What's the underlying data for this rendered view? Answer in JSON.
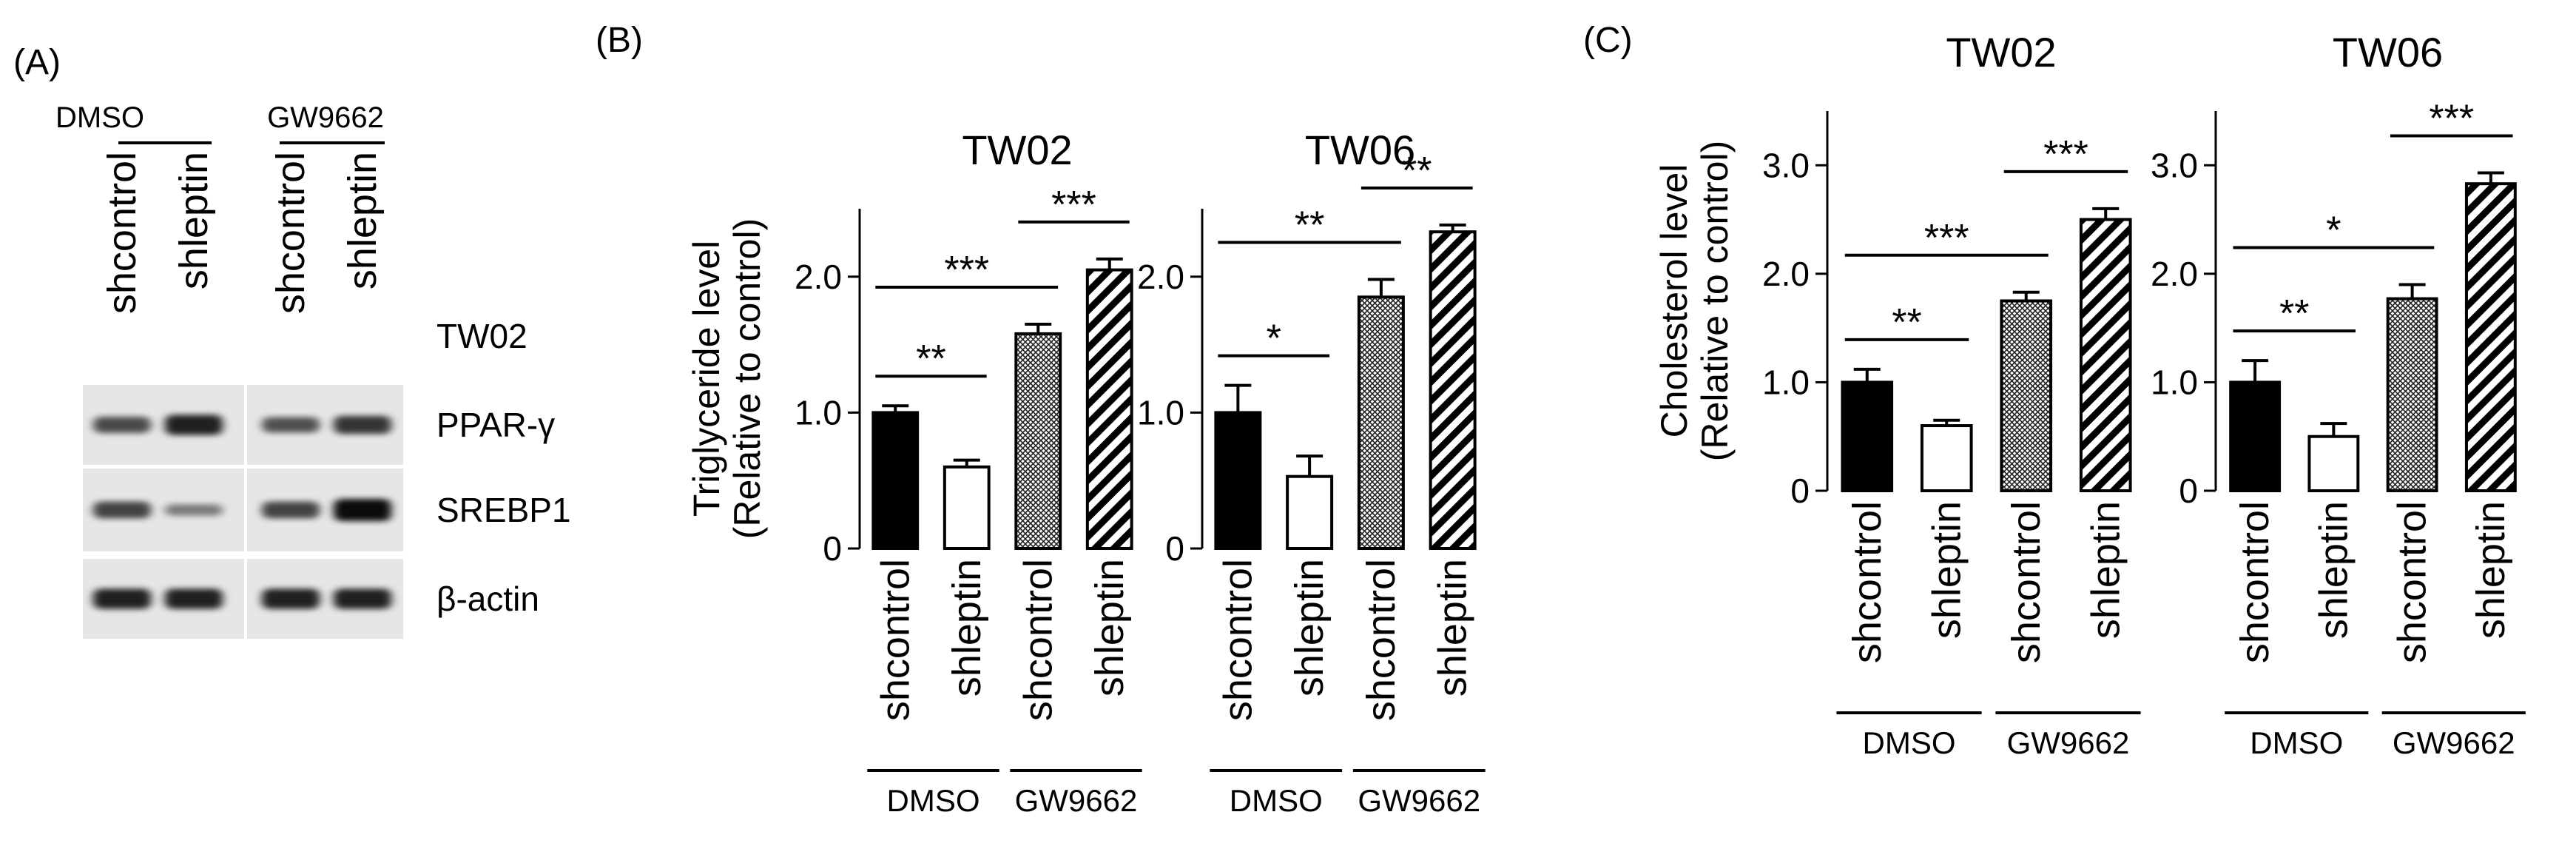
{
  "panel_labels": {
    "a": "(A)",
    "b": "(B)",
    "c": "(C)"
  },
  "blot": {
    "treatments": [
      "DMSO",
      "GW9662"
    ],
    "lanes": [
      "shcontrol",
      "shleptin",
      "shcontrol",
      "shleptin"
    ],
    "cell_line": "TW02",
    "proteins": [
      {
        "name": "PPAR-γ",
        "intensities": [
          0.55,
          0.85,
          0.5,
          0.7
        ]
      },
      {
        "name": "SREBP1",
        "intensities": [
          0.6,
          0.2,
          0.6,
          1.0
        ]
      },
      {
        "name": "β-actin",
        "intensities": [
          0.85,
          0.85,
          0.85,
          0.85
        ]
      }
    ]
  },
  "chart_data": [
    {
      "type": "bar",
      "panel": "B",
      "title": "TW02",
      "ylabel": "Triglyceride level",
      "ylabel2": "(Relative to control)",
      "categories": [
        "shcontrol",
        "shleptin",
        "shcontrol",
        "shleptin"
      ],
      "groups": [
        "DMSO",
        "GW9662"
      ],
      "values": [
        1.0,
        0.6,
        1.58,
        2.05
      ],
      "errors": [
        0.05,
        0.05,
        0.07,
        0.08
      ],
      "ylim": [
        0,
        2.5
      ],
      "yticks": [
        "0",
        "1.0",
        "2.0"
      ],
      "significance": [
        {
          "from": 0,
          "to": 1,
          "label": "**"
        },
        {
          "from": 0,
          "to": 2,
          "label": "***"
        },
        {
          "from": 2,
          "to": 3,
          "label": "***"
        }
      ]
    },
    {
      "type": "bar",
      "panel": "B",
      "title": "TW06",
      "ylabel": "",
      "categories": [
        "shcontrol",
        "shleptin",
        "shcontrol",
        "shleptin"
      ],
      "groups": [
        "DMSO",
        "GW9662"
      ],
      "values": [
        1.0,
        0.53,
        1.85,
        2.33
      ],
      "errors": [
        0.2,
        0.15,
        0.13,
        0.05
      ],
      "ylim": [
        0,
        2.5
      ],
      "yticks": [
        "0",
        "1.0",
        "2.0"
      ],
      "significance": [
        {
          "from": 0,
          "to": 1,
          "label": "*"
        },
        {
          "from": 0,
          "to": 2,
          "label": "**"
        },
        {
          "from": 2,
          "to": 3,
          "label": "**"
        }
      ]
    },
    {
      "type": "bar",
      "panel": "C",
      "title": "TW02",
      "ylabel": "Cholesterol level",
      "ylabel2": "(Relative to control)",
      "categories": [
        "shcontrol",
        "shleptin",
        "shcontrol",
        "shleptin"
      ],
      "groups": [
        "DMSO",
        "GW9662"
      ],
      "values": [
        1.0,
        0.6,
        1.75,
        2.5
      ],
      "errors": [
        0.12,
        0.05,
        0.08,
        0.1
      ],
      "ylim": [
        0,
        3.5
      ],
      "yticks": [
        "0",
        "1.0",
        "2.0",
        "3.0"
      ],
      "significance": [
        {
          "from": 0,
          "to": 1,
          "label": "**"
        },
        {
          "from": 0,
          "to": 2,
          "label": "***"
        },
        {
          "from": 2,
          "to": 3,
          "label": "***"
        }
      ]
    },
    {
      "type": "bar",
      "panel": "C",
      "title": "TW06",
      "ylabel": "",
      "categories": [
        "shcontrol",
        "shleptin",
        "shcontrol",
        "shleptin"
      ],
      "groups": [
        "DMSO",
        "GW9662"
      ],
      "values": [
        1.0,
        0.5,
        1.77,
        2.83
      ],
      "errors": [
        0.2,
        0.12,
        0.13,
        0.1
      ],
      "ylim": [
        0,
        3.5
      ],
      "yticks": [
        "0",
        "1.0",
        "2.0",
        "3.0"
      ],
      "significance": [
        {
          "from": 0,
          "to": 1,
          "label": "**"
        },
        {
          "from": 0,
          "to": 2,
          "label": "*"
        },
        {
          "from": 2,
          "to": 3,
          "label": "***"
        }
      ]
    }
  ]
}
